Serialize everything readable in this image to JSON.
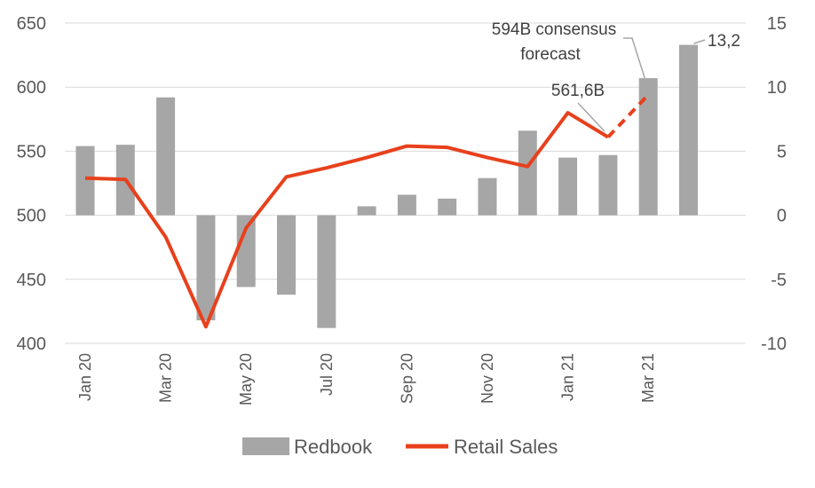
{
  "chart_data": {
    "type": "bar+line",
    "categories": [
      "Jan 20",
      "Feb 20",
      "Mar 20",
      "Apr 20",
      "May 20",
      "Jun 20",
      "Jul 20",
      "Aug 20",
      "Sep 20",
      "Oct 20",
      "Nov 20",
      "Dec 20",
      "Jan 21",
      "Feb 21",
      "Mar 21",
      "Apr 21"
    ],
    "x_tick_labels": [
      "Jan 20",
      "Mar 20",
      "May 20",
      "Jul 20",
      "Sep 20",
      "Nov 20",
      "Jan 21",
      "Mar 21"
    ],
    "series": [
      {
        "name": "Redbook",
        "type": "bar",
        "axis": "left",
        "color": "#a6a6a6",
        "values": [
          554,
          555,
          592,
          418,
          444,
          438,
          412,
          507,
          516,
          513,
          529,
          566,
          545,
          547,
          607,
          633
        ]
      },
      {
        "name": "Retail Sales",
        "type": "line",
        "axis": "right",
        "color": "#e8401c",
        "values": [
          2.9,
          2.8,
          -1.7,
          -8.7,
          -1.0,
          3.0,
          3.7,
          4.5,
          5.4,
          5.3,
          4.5,
          3.8,
          8.0,
          6.1,
          9.4,
          null
        ],
        "dashed_from_index": 13
      }
    ],
    "y_left": {
      "ylim": [
        400,
        650
      ],
      "ticks": [
        400,
        450,
        500,
        550,
        600,
        650
      ]
    },
    "y_right": {
      "ylim": [
        -10,
        15
      ],
      "ticks": [
        -10,
        -5,
        0,
        5,
        10,
        15
      ]
    },
    "annotations": [
      {
        "text_lines": [
          "594B consensus",
          "forecast"
        ],
        "points_to_index": 14
      },
      {
        "text_lines": [
          "561,6B"
        ],
        "points_to_index": 13
      },
      {
        "text_lines": [
          "13,2"
        ],
        "points_to_index": 15
      }
    ],
    "legend": {
      "placement": "bottom",
      "items": [
        "Redbook",
        "Retail Sales"
      ]
    },
    "grid": true
  }
}
